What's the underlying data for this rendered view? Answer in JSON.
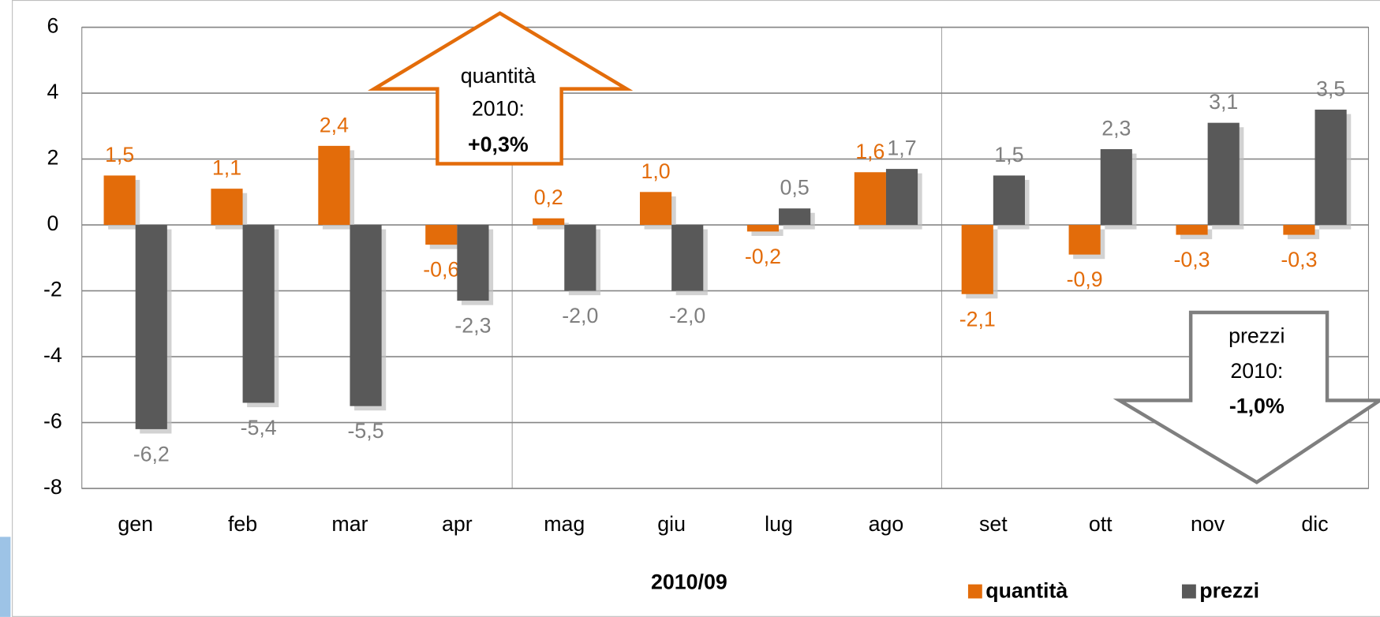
{
  "chart_data": {
    "type": "bar",
    "categories": [
      "gen",
      "feb",
      "mar",
      "apr",
      "mag",
      "giu",
      "lug",
      "ago",
      "set",
      "ott",
      "nov",
      "dic"
    ],
    "series": [
      {
        "name": "quantità",
        "color": "#e36c0a",
        "values": [
          1.5,
          1.1,
          2.4,
          -0.6,
          0.2,
          1.0,
          -0.2,
          1.6,
          -2.1,
          -0.9,
          -0.3,
          -0.3
        ],
        "value_labels": [
          "1,5",
          "1,1",
          "2,4",
          "-0,6",
          "0,2",
          "1,0",
          "-0,2",
          "1,6",
          "-2,1",
          "-0,9",
          "-0,3",
          "-0,3"
        ]
      },
      {
        "name": "prezzi",
        "color": "#595959",
        "values": [
          -6.2,
          -5.4,
          -5.5,
          -2.3,
          -2.0,
          -2.0,
          0.5,
          1.7,
          1.5,
          2.3,
          3.1,
          3.5
        ],
        "value_labels": [
          "-6,2",
          "-5,4",
          "-5,5",
          "-2,3",
          "-2,0",
          "-2,0",
          "0,5",
          "1,7",
          "1,5",
          "2,3",
          "3,1",
          "3,5"
        ]
      }
    ],
    "x_label": "2010/09",
    "ylim": [
      -8,
      6
    ],
    "yticks": [
      -8,
      -6,
      -4,
      -2,
      0,
      2,
      4,
      6
    ],
    "grid": true,
    "annotations": [
      {
        "lines": [
          "quantità",
          "2010:"
        ],
        "emphasis": "+0,3%"
      },
      {
        "lines": [
          "prezzi",
          "2010:"
        ],
        "emphasis": "-1,0%"
      }
    ]
  }
}
